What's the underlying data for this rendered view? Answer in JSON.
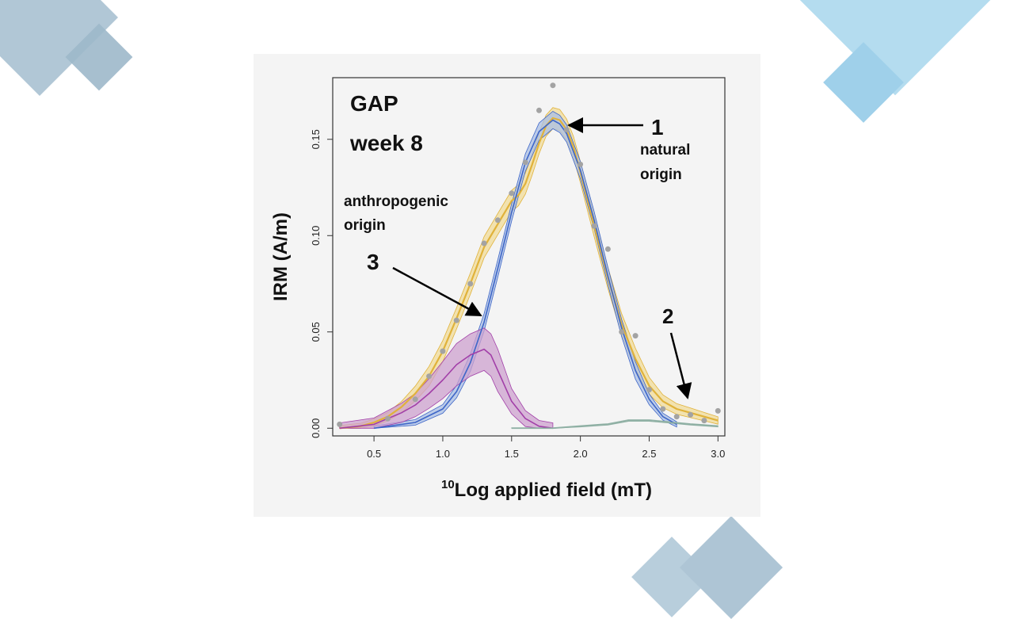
{
  "chart_data": {
    "type": "line",
    "panel_title": [
      "GAP",
      "week 8"
    ],
    "xlabel_superscript": "10",
    "xlabel": "Log applied field (mT)",
    "ylabel": "IRM (A/m)",
    "xlim": [
      0.2,
      3.05
    ],
    "ylim": [
      -0.004,
      0.182
    ],
    "x_ticks": [
      0.5,
      1.0,
      1.5,
      2.0,
      2.5,
      3.0
    ],
    "x_tick_labels": [
      "0.5",
      "1.0",
      "1.5",
      "2.0",
      "2.5",
      "3.0"
    ],
    "y_ticks": [
      0.0,
      0.05,
      0.1,
      0.15
    ],
    "y_tick_labels": [
      "0.00",
      "0.05",
      "0.10",
      "0.15"
    ],
    "grid": false,
    "series": [
      {
        "color": "#e0b23a",
        "x": [
          0.25,
          0.4,
          0.5,
          0.6,
          0.7,
          0.8,
          0.9,
          1.0,
          1.1,
          1.2,
          1.3,
          1.4,
          1.5,
          1.55,
          1.6,
          1.65,
          1.7,
          1.75,
          1.8,
          1.85,
          1.9,
          1.95,
          2.0,
          2.1,
          2.2,
          2.3,
          2.4,
          2.5,
          2.6,
          2.7,
          2.8,
          2.9,
          3.0
        ],
        "y": [
          0.0,
          0.001,
          0.003,
          0.006,
          0.011,
          0.018,
          0.027,
          0.04,
          0.057,
          0.075,
          0.094,
          0.106,
          0.118,
          0.121,
          0.127,
          0.137,
          0.148,
          0.157,
          0.161,
          0.16,
          0.155,
          0.146,
          0.133,
          0.105,
          0.078,
          0.054,
          0.036,
          0.022,
          0.014,
          0.01,
          0.008,
          0.006,
          0.004
        ]
      },
      {
        "color": "#3e66c8",
        "x": [
          0.5,
          0.8,
          1.0,
          1.1,
          1.2,
          1.3,
          1.4,
          1.5,
          1.6,
          1.7,
          1.8,
          1.85,
          1.9,
          2.0,
          2.1,
          2.2,
          2.3,
          2.4,
          2.5,
          2.6,
          2.7
        ],
        "y": [
          0.0,
          0.003,
          0.01,
          0.019,
          0.034,
          0.055,
          0.083,
          0.112,
          0.138,
          0.154,
          0.16,
          0.158,
          0.153,
          0.134,
          0.108,
          0.079,
          0.052,
          0.03,
          0.015,
          0.006,
          0.002
        ]
      },
      {
        "color": "#a23fa8",
        "x": [
          0.25,
          0.5,
          0.7,
          0.8,
          0.9,
          1.0,
          1.1,
          1.2,
          1.3,
          1.35,
          1.4,
          1.5,
          1.6,
          1.7,
          1.8
        ],
        "y": [
          0.0,
          0.002,
          0.008,
          0.012,
          0.018,
          0.025,
          0.033,
          0.038,
          0.041,
          0.038,
          0.03,
          0.014,
          0.005,
          0.001,
          0.0
        ]
      },
      {
        "color": "#8fb0a4",
        "x": [
          1.5,
          1.8,
          2.0,
          2.2,
          2.35,
          2.5,
          2.65,
          2.8,
          3.0
        ],
        "y": [
          0.0,
          0.0,
          0.001,
          0.002,
          0.004,
          0.004,
          0.003,
          0.002,
          0.001
        ]
      }
    ],
    "points": {
      "color": "#a3a3a3",
      "x": [
        0.25,
        0.6,
        0.8,
        0.9,
        1.0,
        1.1,
        1.2,
        1.3,
        1.4,
        1.5,
        1.6,
        1.7,
        1.8,
        1.9,
        2.0,
        2.1,
        2.2,
        2.3,
        2.4,
        2.5,
        2.6,
        2.7,
        2.8,
        2.9,
        3.0
      ],
      "y": [
        0.002,
        0.005,
        0.015,
        0.027,
        0.04,
        0.056,
        0.075,
        0.096,
        0.108,
        0.122,
        0.138,
        0.165,
        0.178,
        0.155,
        0.137,
        0.105,
        0.093,
        0.05,
        0.048,
        0.02,
        0.01,
        0.006,
        0.007,
        0.004,
        0.009
      ]
    },
    "annotations": [
      {
        "id": "ann-1",
        "number": "1",
        "text": [
          "natural",
          "origin"
        ]
      },
      {
        "id": "ann-2",
        "number": "2",
        "text": []
      },
      {
        "id": "ann-3",
        "number": "3",
        "text": [
          "anthropogenic",
          "origin"
        ]
      }
    ]
  }
}
